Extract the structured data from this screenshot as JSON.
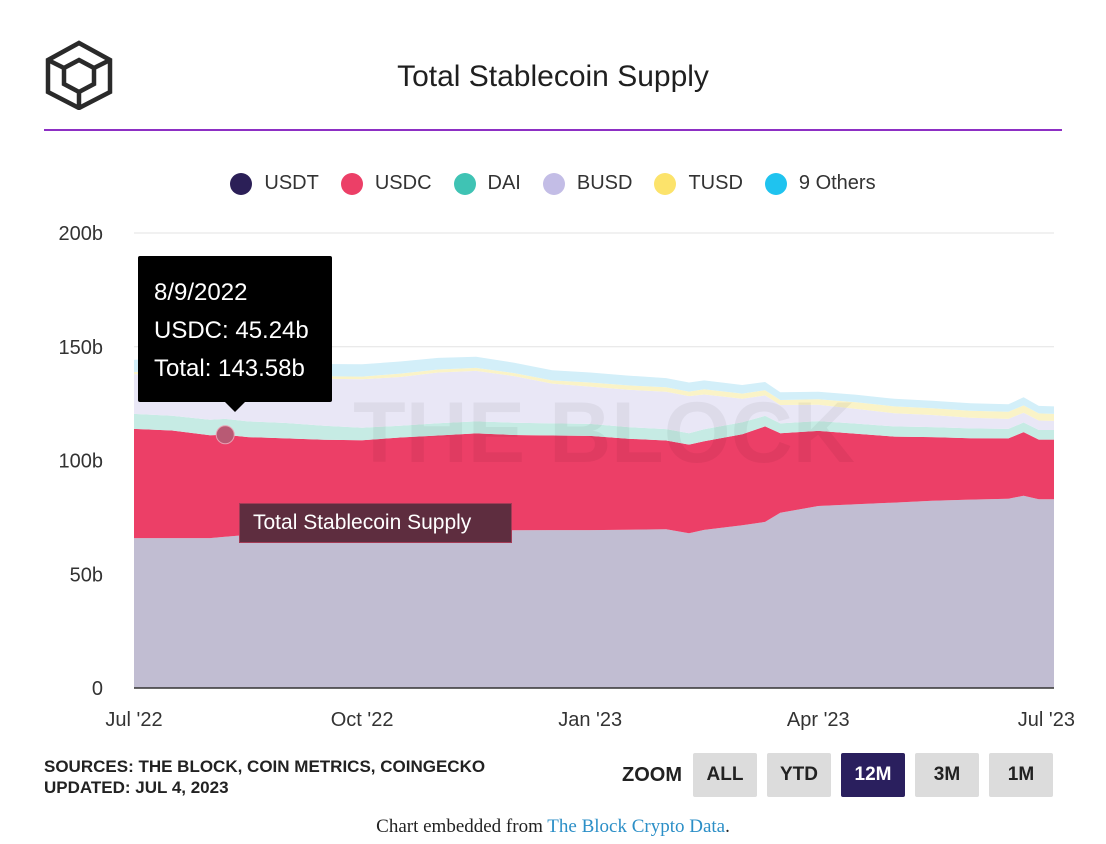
{
  "header": {
    "title": "Total Stablecoin Supply"
  },
  "legend": [
    {
      "label": "USDT",
      "color": "#2b1f57"
    },
    {
      "label": "USDC",
      "color": "#ec3f67"
    },
    {
      "label": "DAI",
      "color": "#3fc3b4"
    },
    {
      "label": "BUSD",
      "color": "#c3bde6"
    },
    {
      "label": "TUSD",
      "color": "#fce36b"
    },
    {
      "label": "9 Others",
      "color": "#1fc3ef"
    }
  ],
  "tooltip": {
    "date": "8/9/2022",
    "line1": "USDC: 45.24b",
    "line2": "Total: 143.58b",
    "series_label": "Total Stablecoin Supply"
  },
  "watermark": "THE BLOCK",
  "sources": {
    "line1": "SOURCES: THE BLOCK, COIN METRICS, COINGECKO",
    "line2": "UPDATED: JUL 4, 2023"
  },
  "zoom": {
    "label": "ZOOM",
    "buttons": [
      "ALL",
      "YTD",
      "12M",
      "3M",
      "1M"
    ],
    "active": "12M"
  },
  "footer": {
    "prefix": "Chart embedded from ",
    "link": "The Block Crypto Data",
    "suffix": "."
  },
  "chart_data": {
    "type": "area",
    "stacked": true,
    "title": "Total Stablecoin Supply",
    "xlabel": "",
    "ylabel": "",
    "ylim": [
      0,
      200
    ],
    "y_ticks": [
      0,
      50,
      100,
      150,
      200
    ],
    "y_tick_labels": [
      "0",
      "50b",
      "100b",
      "150b",
      "200b"
    ],
    "x_ticks": [
      {
        "t": 0,
        "label": "Jul '22"
      },
      {
        "t": 3,
        "label": "Oct '22"
      },
      {
        "t": 6,
        "label": "Jan '23"
      },
      {
        "t": 9,
        "label": "Apr '23"
      },
      {
        "t": 12,
        "label": "Jul '23"
      }
    ],
    "x_range": [
      0,
      12.1
    ],
    "x": [
      0,
      0.5,
      1,
      1.2,
      1.5,
      2,
      2.5,
      3,
      3.5,
      4,
      4.5,
      5,
      5.5,
      6,
      6.5,
      7,
      7.3,
      7.5,
      8,
      8.3,
      8.5,
      9,
      9.5,
      10,
      10.5,
      11,
      11.5,
      11.7,
      11.9,
      12.1
    ],
    "series": [
      {
        "name": "USDT",
        "color": "#c1bdd2",
        "values": [
          65.9,
          65.9,
          65.9,
          66.5,
          67.3,
          68.2,
          68.3,
          68.4,
          68.8,
          69.0,
          69.2,
          69.3,
          69.4,
          69.4,
          69.6,
          69.8,
          68.0,
          69.5,
          71.5,
          73.0,
          77.0,
          80.0,
          80.8,
          81.5,
          82.3,
          82.8,
          83.2,
          84.5,
          83.0,
          83.0
        ]
      },
      {
        "name": "USDC",
        "color": "#ec3f67",
        "values": [
          48.0,
          47.3,
          45.2,
          44.8,
          43.0,
          41.5,
          40.8,
          40.5,
          41.3,
          42.0,
          42.7,
          41.9,
          41.6,
          41.4,
          40.0,
          39.0,
          39.0,
          39.0,
          40.0,
          42.0,
          35.0,
          33.0,
          31.0,
          29.0,
          28.0,
          27.0,
          26.5,
          28.0,
          26.2,
          26.2
        ]
      },
      {
        "name": "DAI",
        "color": "#c6ebe4",
        "values": [
          6.6,
          6.5,
          6.8,
          7.0,
          6.9,
          6.8,
          6.2,
          5.5,
          5.2,
          5.4,
          5.3,
          5.4,
          5.3,
          5.3,
          5.1,
          5.0,
          5.0,
          5.2,
          5.3,
          4.6,
          4.3,
          4.3,
          4.4,
          4.5,
          4.4,
          4.3,
          4.2,
          4.2,
          4.2,
          4.2
        ]
      },
      {
        "name": "BUSD",
        "color": "#e9e7f6",
        "values": [
          17.4,
          18.5,
          19.1,
          19.6,
          19.8,
          20.4,
          20.6,
          21.3,
          21.4,
          22.3,
          22.2,
          20.5,
          17.5,
          16.4,
          16.4,
          16.4,
          16.3,
          15.3,
          10.3,
          9.0,
          8.1,
          7.2,
          6.5,
          5.8,
          5.3,
          4.7,
          4.4,
          4.3,
          4.2,
          4.0
        ]
      },
      {
        "name": "TUSD",
        "color": "#faf3c7",
        "values": [
          1.0,
          1.1,
          1.1,
          1.1,
          1.1,
          1.1,
          1.1,
          1.2,
          1.5,
          1.3,
          1.3,
          1.3,
          1.4,
          1.8,
          1.9,
          2.0,
          2.0,
          2.3,
          2.3,
          2.3,
          2.2,
          2.4,
          2.9,
          3.0,
          3.0,
          3.1,
          3.1,
          3.2,
          3.1,
          3.1
        ]
      },
      {
        "name": "9 Others",
        "color": "#d3eff9",
        "values": [
          5.4,
          5.4,
          5.4,
          5.4,
          5.4,
          5.4,
          5.4,
          5.4,
          5.3,
          5.1,
          4.9,
          4.6,
          4.5,
          4.4,
          4.3,
          4.0,
          4.0,
          3.9,
          3.8,
          3.6,
          3.4,
          3.3,
          3.3,
          3.3,
          3.3,
          3.3,
          3.3,
          3.6,
          3.3,
          3.3
        ]
      }
    ],
    "highlight": {
      "series": "USDC",
      "x_date": "8/9/2022",
      "t": 1.2,
      "usdc_value": 45.24,
      "total_value": 143.58
    }
  }
}
